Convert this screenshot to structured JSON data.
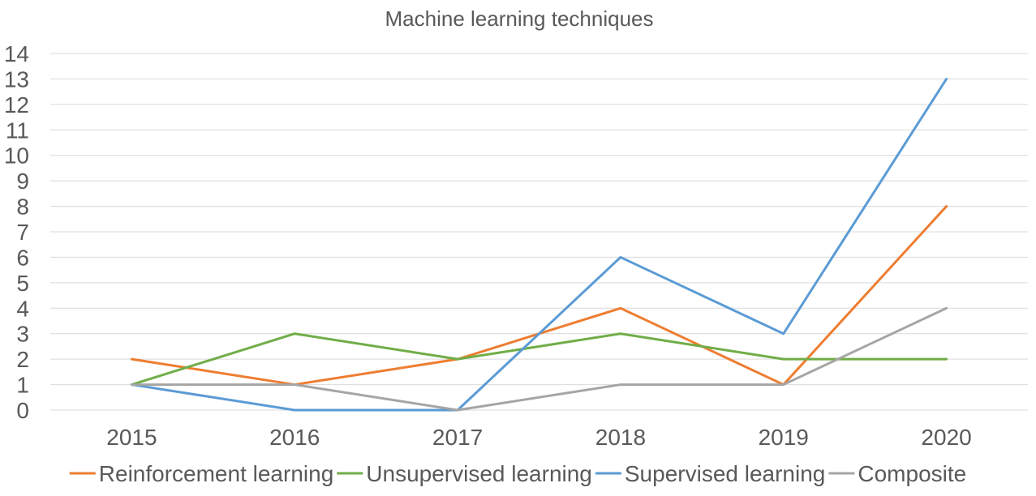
{
  "chart_data": {
    "type": "line",
    "title": "Machine learning techniques",
    "xlabel": "",
    "ylabel": "",
    "categories": [
      "2015",
      "2016",
      "2017",
      "2018",
      "2019",
      "2020"
    ],
    "ylim": [
      0,
      14
    ],
    "yticks": [
      0,
      1,
      2,
      3,
      4,
      5,
      6,
      7,
      8,
      9,
      10,
      11,
      12,
      13,
      14
    ],
    "grid": true,
    "legend_position": "bottom",
    "series": [
      {
        "name": "Reinforcement learning",
        "color": "#ED7D31",
        "values": [
          2,
          1,
          2,
          4,
          1,
          8
        ]
      },
      {
        "name": "Unsupervised learning",
        "color": "#70AD47",
        "values": [
          1,
          3,
          2,
          3,
          2,
          2
        ]
      },
      {
        "name": "Supervised learning",
        "color": "#5B9BD5",
        "values": [
          1,
          0,
          0,
          6,
          3,
          13
        ]
      },
      {
        "name": "Composite",
        "color": "#A5A5A5",
        "values": [
          1,
          1,
          0,
          1,
          1,
          4
        ]
      }
    ]
  }
}
